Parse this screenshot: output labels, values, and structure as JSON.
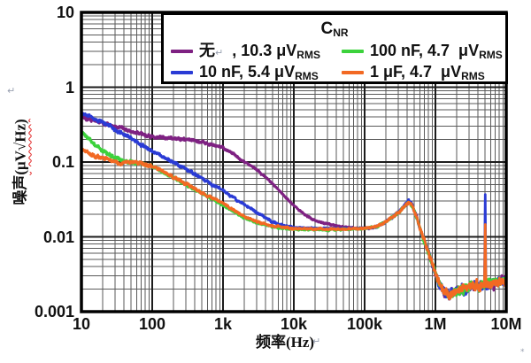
{
  "artifacts": {
    "return_mark": "↵",
    "asterisk_mark": "*"
  },
  "legend": {
    "title_main": "C",
    "title_sub": "NR",
    "entries": [
      {
        "color": "#7E2182",
        "pre": "无",
        "mark": "↵",
        "main": "  , 10.3 μV",
        "sub": "RMS"
      },
      {
        "color": "#3CD23C",
        "pre": "100 nF",
        "mark": "",
        "main": ", 4.7  μV",
        "sub": "RMS"
      },
      {
        "color": "#2A3BD5",
        "pre": "10 nF",
        "mark": "",
        "main": ", 5.4 μV",
        "sub": "RMS"
      },
      {
        "color": "#F26923",
        "pre": "1 μF",
        "mark": "",
        "main": ", 4.7  μV",
        "sub": "RMS"
      }
    ]
  },
  "chart_data": {
    "type": "line",
    "title": "",
    "x_label": "频率(Hz)",
    "y_label_text": "噪声",
    "y_label_unit": "(μV√Hz)",
    "x_scale": "log",
    "y_scale": "log",
    "x_range": [
      10,
      10000000
    ],
    "y_range": [
      0.001,
      10
    ],
    "x_tick_values": [
      10,
      100,
      1000,
      10000,
      100000,
      1000000,
      10000000
    ],
    "x_tick_labels": [
      "10",
      "100",
      "1k",
      "10k",
      "100k",
      "1M",
      "10M"
    ],
    "y_tick_values": [
      10,
      1,
      0.1,
      0.01,
      0.001
    ],
    "y_tick_labels": [
      "10",
      "1",
      "0.1",
      "0.01",
      "0.001"
    ],
    "grid": "log major+minor, both axes",
    "legend_position": "top",
    "legend_title": "CNR",
    "series": [
      {
        "id": "cnr-none",
        "label": "无",
        "rms": "10.3 μVRMS",
        "color": "#7E2182",
        "points": [
          [
            10,
            0.42
          ],
          [
            12,
            0.38
          ],
          [
            15,
            0.36
          ],
          [
            20,
            0.33
          ],
          [
            25,
            0.31
          ],
          [
            30,
            0.3
          ],
          [
            40,
            0.28
          ],
          [
            50,
            0.26
          ],
          [
            60,
            0.25
          ],
          [
            80,
            0.23
          ],
          [
            100,
            0.22
          ],
          [
            150,
            0.21
          ],
          [
            200,
            0.205
          ],
          [
            300,
            0.2
          ],
          [
            400,
            0.192
          ],
          [
            500,
            0.185
          ],
          [
            700,
            0.17
          ],
          [
            1000,
            0.155
          ],
          [
            1400,
            0.13
          ],
          [
            2000,
            0.1
          ],
          [
            3000,
            0.079
          ],
          [
            5000,
            0.052
          ],
          [
            7000,
            0.037
          ],
          [
            10000,
            0.026
          ],
          [
            14000,
            0.02
          ],
          [
            20000,
            0.0165
          ],
          [
            30000,
            0.0148
          ],
          [
            50000,
            0.0136
          ],
          [
            70000,
            0.0131
          ],
          [
            100000,
            0.013
          ],
          [
            150000,
            0.0136
          ],
          [
            200000,
            0.016
          ],
          [
            250000,
            0.0185
          ],
          [
            300000,
            0.021
          ],
          [
            350000,
            0.0245
          ],
          [
            420000,
            0.029
          ],
          [
            470000,
            0.0265
          ],
          [
            550000,
            0.0175
          ],
          [
            650000,
            0.0105
          ],
          [
            800000,
            0.0062
          ],
          [
            950000,
            0.0038
          ],
          [
            1100000,
            0.0025
          ],
          [
            1300000,
            0.0019
          ],
          [
            1600000,
            0.0017
          ],
          [
            2000000,
            0.0019
          ],
          [
            3000000,
            0.0021
          ],
          [
            4000000,
            0.00215
          ],
          [
            5000000,
            0.0023
          ],
          [
            7000000,
            0.0024
          ],
          [
            10000000,
            0.0027
          ]
        ]
      },
      {
        "id": "cnr-10nf",
        "label": "10 nF",
        "rms": "5.4 μVRMS",
        "color": "#2A3BD5",
        "spike": [
          5050000,
          0.042
        ],
        "points": [
          [
            10,
            0.46
          ],
          [
            12,
            0.41
          ],
          [
            15,
            0.38
          ],
          [
            20,
            0.34
          ],
          [
            25,
            0.3
          ],
          [
            30,
            0.27
          ],
          [
            40,
            0.235
          ],
          [
            50,
            0.21
          ],
          [
            70,
            0.17
          ],
          [
            100,
            0.14
          ],
          [
            150,
            0.115
          ],
          [
            200,
            0.1
          ],
          [
            300,
            0.08
          ],
          [
            500,
            0.061
          ],
          [
            700,
            0.05
          ],
          [
            1000,
            0.042
          ],
          [
            1500,
            0.032
          ],
          [
            2000,
            0.027
          ],
          [
            3200,
            0.0205
          ],
          [
            5000,
            0.0158
          ],
          [
            7000,
            0.0142
          ],
          [
            10000,
            0.0134
          ],
          [
            20000,
            0.013
          ],
          [
            50000,
            0.013
          ],
          [
            70000,
            0.0131
          ],
          [
            100000,
            0.013
          ],
          [
            150000,
            0.0136
          ],
          [
            200000,
            0.016
          ],
          [
            250000,
            0.0185
          ],
          [
            300000,
            0.0215
          ],
          [
            350000,
            0.025
          ],
          [
            420000,
            0.031
          ],
          [
            470000,
            0.027
          ],
          [
            550000,
            0.0175
          ],
          [
            650000,
            0.0105
          ],
          [
            800000,
            0.0062
          ],
          [
            950000,
            0.0038
          ],
          [
            1100000,
            0.0025
          ],
          [
            1300000,
            0.0019
          ],
          [
            1600000,
            0.0017
          ],
          [
            2000000,
            0.0019
          ],
          [
            3000000,
            0.0021
          ],
          [
            4000000,
            0.00215
          ],
          [
            5000000,
            0.0023
          ],
          [
            7000000,
            0.0024
          ],
          [
            10000000,
            0.0027
          ]
        ]
      },
      {
        "id": "cnr-100nf",
        "label": "100 nF",
        "rms": "4.7 μVRMS",
        "color": "#3CD23C",
        "points": [
          [
            10,
            0.26
          ],
          [
            12,
            0.21
          ],
          [
            15,
            0.175
          ],
          [
            20,
            0.14
          ],
          [
            25,
            0.122
          ],
          [
            30,
            0.115
          ],
          [
            40,
            0.105
          ],
          [
            50,
            0.1
          ],
          [
            70,
            0.094
          ],
          [
            100,
            0.088
          ],
          [
            150,
            0.071
          ],
          [
            200,
            0.062
          ],
          [
            300,
            0.05
          ],
          [
            500,
            0.038
          ],
          [
            700,
            0.032
          ],
          [
            1000,
            0.0265
          ],
          [
            1500,
            0.021
          ],
          [
            2000,
            0.018
          ],
          [
            3200,
            0.0152
          ],
          [
            5000,
            0.0136
          ],
          [
            10000,
            0.0126
          ],
          [
            30000,
            0.0124
          ],
          [
            70000,
            0.0127
          ],
          [
            100000,
            0.013
          ],
          [
            150000,
            0.0136
          ],
          [
            200000,
            0.016
          ],
          [
            250000,
            0.0185
          ],
          [
            300000,
            0.021
          ],
          [
            350000,
            0.0245
          ],
          [
            420000,
            0.029
          ],
          [
            470000,
            0.0265
          ],
          [
            550000,
            0.0175
          ],
          [
            650000,
            0.0105
          ],
          [
            800000,
            0.0062
          ],
          [
            950000,
            0.0038
          ],
          [
            1100000,
            0.0025
          ],
          [
            1300000,
            0.0019
          ],
          [
            1600000,
            0.0017
          ],
          [
            2000000,
            0.0019
          ],
          [
            3000000,
            0.0021
          ],
          [
            4000000,
            0.00215
          ],
          [
            5000000,
            0.0023
          ],
          [
            7000000,
            0.0024
          ],
          [
            10000000,
            0.0027
          ]
        ]
      },
      {
        "id": "cnr-1uf",
        "label": "1 μF",
        "rms": "4.7 μVRMS",
        "color": "#F26923",
        "spike": [
          5050000,
          0.016
        ],
        "points": [
          [
            10,
            0.15
          ],
          [
            13,
            0.128
          ],
          [
            16,
            0.118
          ],
          [
            20,
            0.112
          ],
          [
            25,
            0.106
          ],
          [
            30,
            0.102
          ],
          [
            35,
            0.094
          ],
          [
            45,
            0.098
          ],
          [
            55,
            0.102
          ],
          [
            70,
            0.094
          ],
          [
            100,
            0.089
          ],
          [
            150,
            0.073
          ],
          [
            200,
            0.063
          ],
          [
            300,
            0.051
          ],
          [
            500,
            0.039
          ],
          [
            700,
            0.033
          ],
          [
            1000,
            0.028
          ],
          [
            1500,
            0.0222
          ],
          [
            2000,
            0.0185
          ],
          [
            3200,
            0.0158
          ],
          [
            5000,
            0.014
          ],
          [
            10000,
            0.0129
          ],
          [
            30000,
            0.0126
          ],
          [
            70000,
            0.0128
          ],
          [
            100000,
            0.013
          ],
          [
            150000,
            0.0136
          ],
          [
            200000,
            0.016
          ],
          [
            250000,
            0.0185
          ],
          [
            300000,
            0.021
          ],
          [
            350000,
            0.0245
          ],
          [
            420000,
            0.029
          ],
          [
            470000,
            0.0265
          ],
          [
            550000,
            0.0175
          ],
          [
            650000,
            0.0105
          ],
          [
            800000,
            0.0062
          ],
          [
            950000,
            0.0038
          ],
          [
            1100000,
            0.0025
          ],
          [
            1300000,
            0.0019
          ],
          [
            1600000,
            0.0017
          ],
          [
            2000000,
            0.0019
          ],
          [
            3000000,
            0.0021
          ],
          [
            4000000,
            0.00215
          ],
          [
            5000000,
            0.0023
          ],
          [
            7000000,
            0.0024
          ],
          [
            10000000,
            0.0027
          ]
        ]
      }
    ]
  }
}
